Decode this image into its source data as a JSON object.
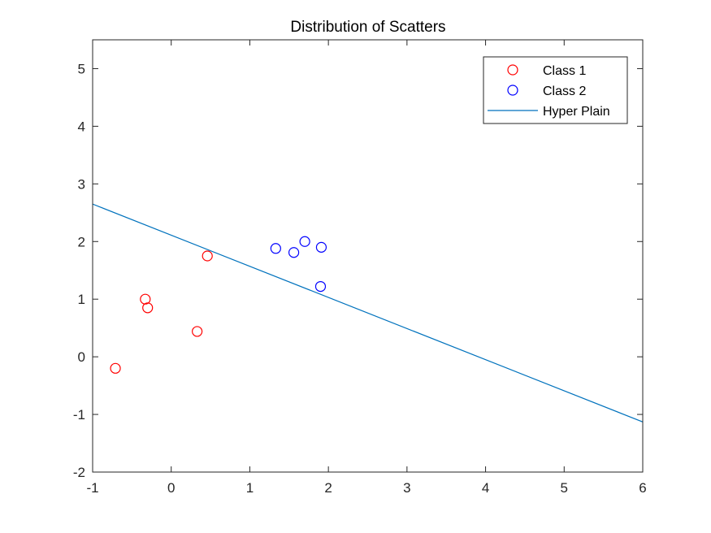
{
  "chart_data": {
    "type": "scatter",
    "title": "Distribution of Scatters",
    "xlabel": "",
    "ylabel": "",
    "xlim": [
      -1,
      6
    ],
    "ylim": [
      -2,
      5.5
    ],
    "xticks": [
      -1,
      0,
      1,
      2,
      3,
      4,
      5,
      6
    ],
    "yticks": [
      -2,
      -1,
      0,
      1,
      2,
      3,
      4,
      5
    ],
    "grid": false,
    "legend_position": "top-right",
    "series": [
      {
        "name": "Class 1",
        "kind": "scatter",
        "marker": "circle-open",
        "color": "#ff0000",
        "points": [
          {
            "x": -0.71,
            "y": -0.2
          },
          {
            "x": -0.33,
            "y": 1.0
          },
          {
            "x": -0.3,
            "y": 0.85
          },
          {
            "x": 0.33,
            "y": 0.44
          },
          {
            "x": 0.46,
            "y": 1.75
          }
        ]
      },
      {
        "name": "Class 2",
        "kind": "scatter",
        "marker": "circle-open",
        "color": "#0000ff",
        "points": [
          {
            "x": 1.33,
            "y": 1.88
          },
          {
            "x": 1.56,
            "y": 1.81
          },
          {
            "x": 1.7,
            "y": 2.0
          },
          {
            "x": 1.91,
            "y": 1.9
          },
          {
            "x": 1.9,
            "y": 1.22
          }
        ]
      },
      {
        "name": "Hyper Plain",
        "kind": "line",
        "color": "#0072bd",
        "points": [
          {
            "x": -1,
            "y": 2.65
          },
          {
            "x": 6,
            "y": -1.13
          }
        ]
      }
    ]
  }
}
